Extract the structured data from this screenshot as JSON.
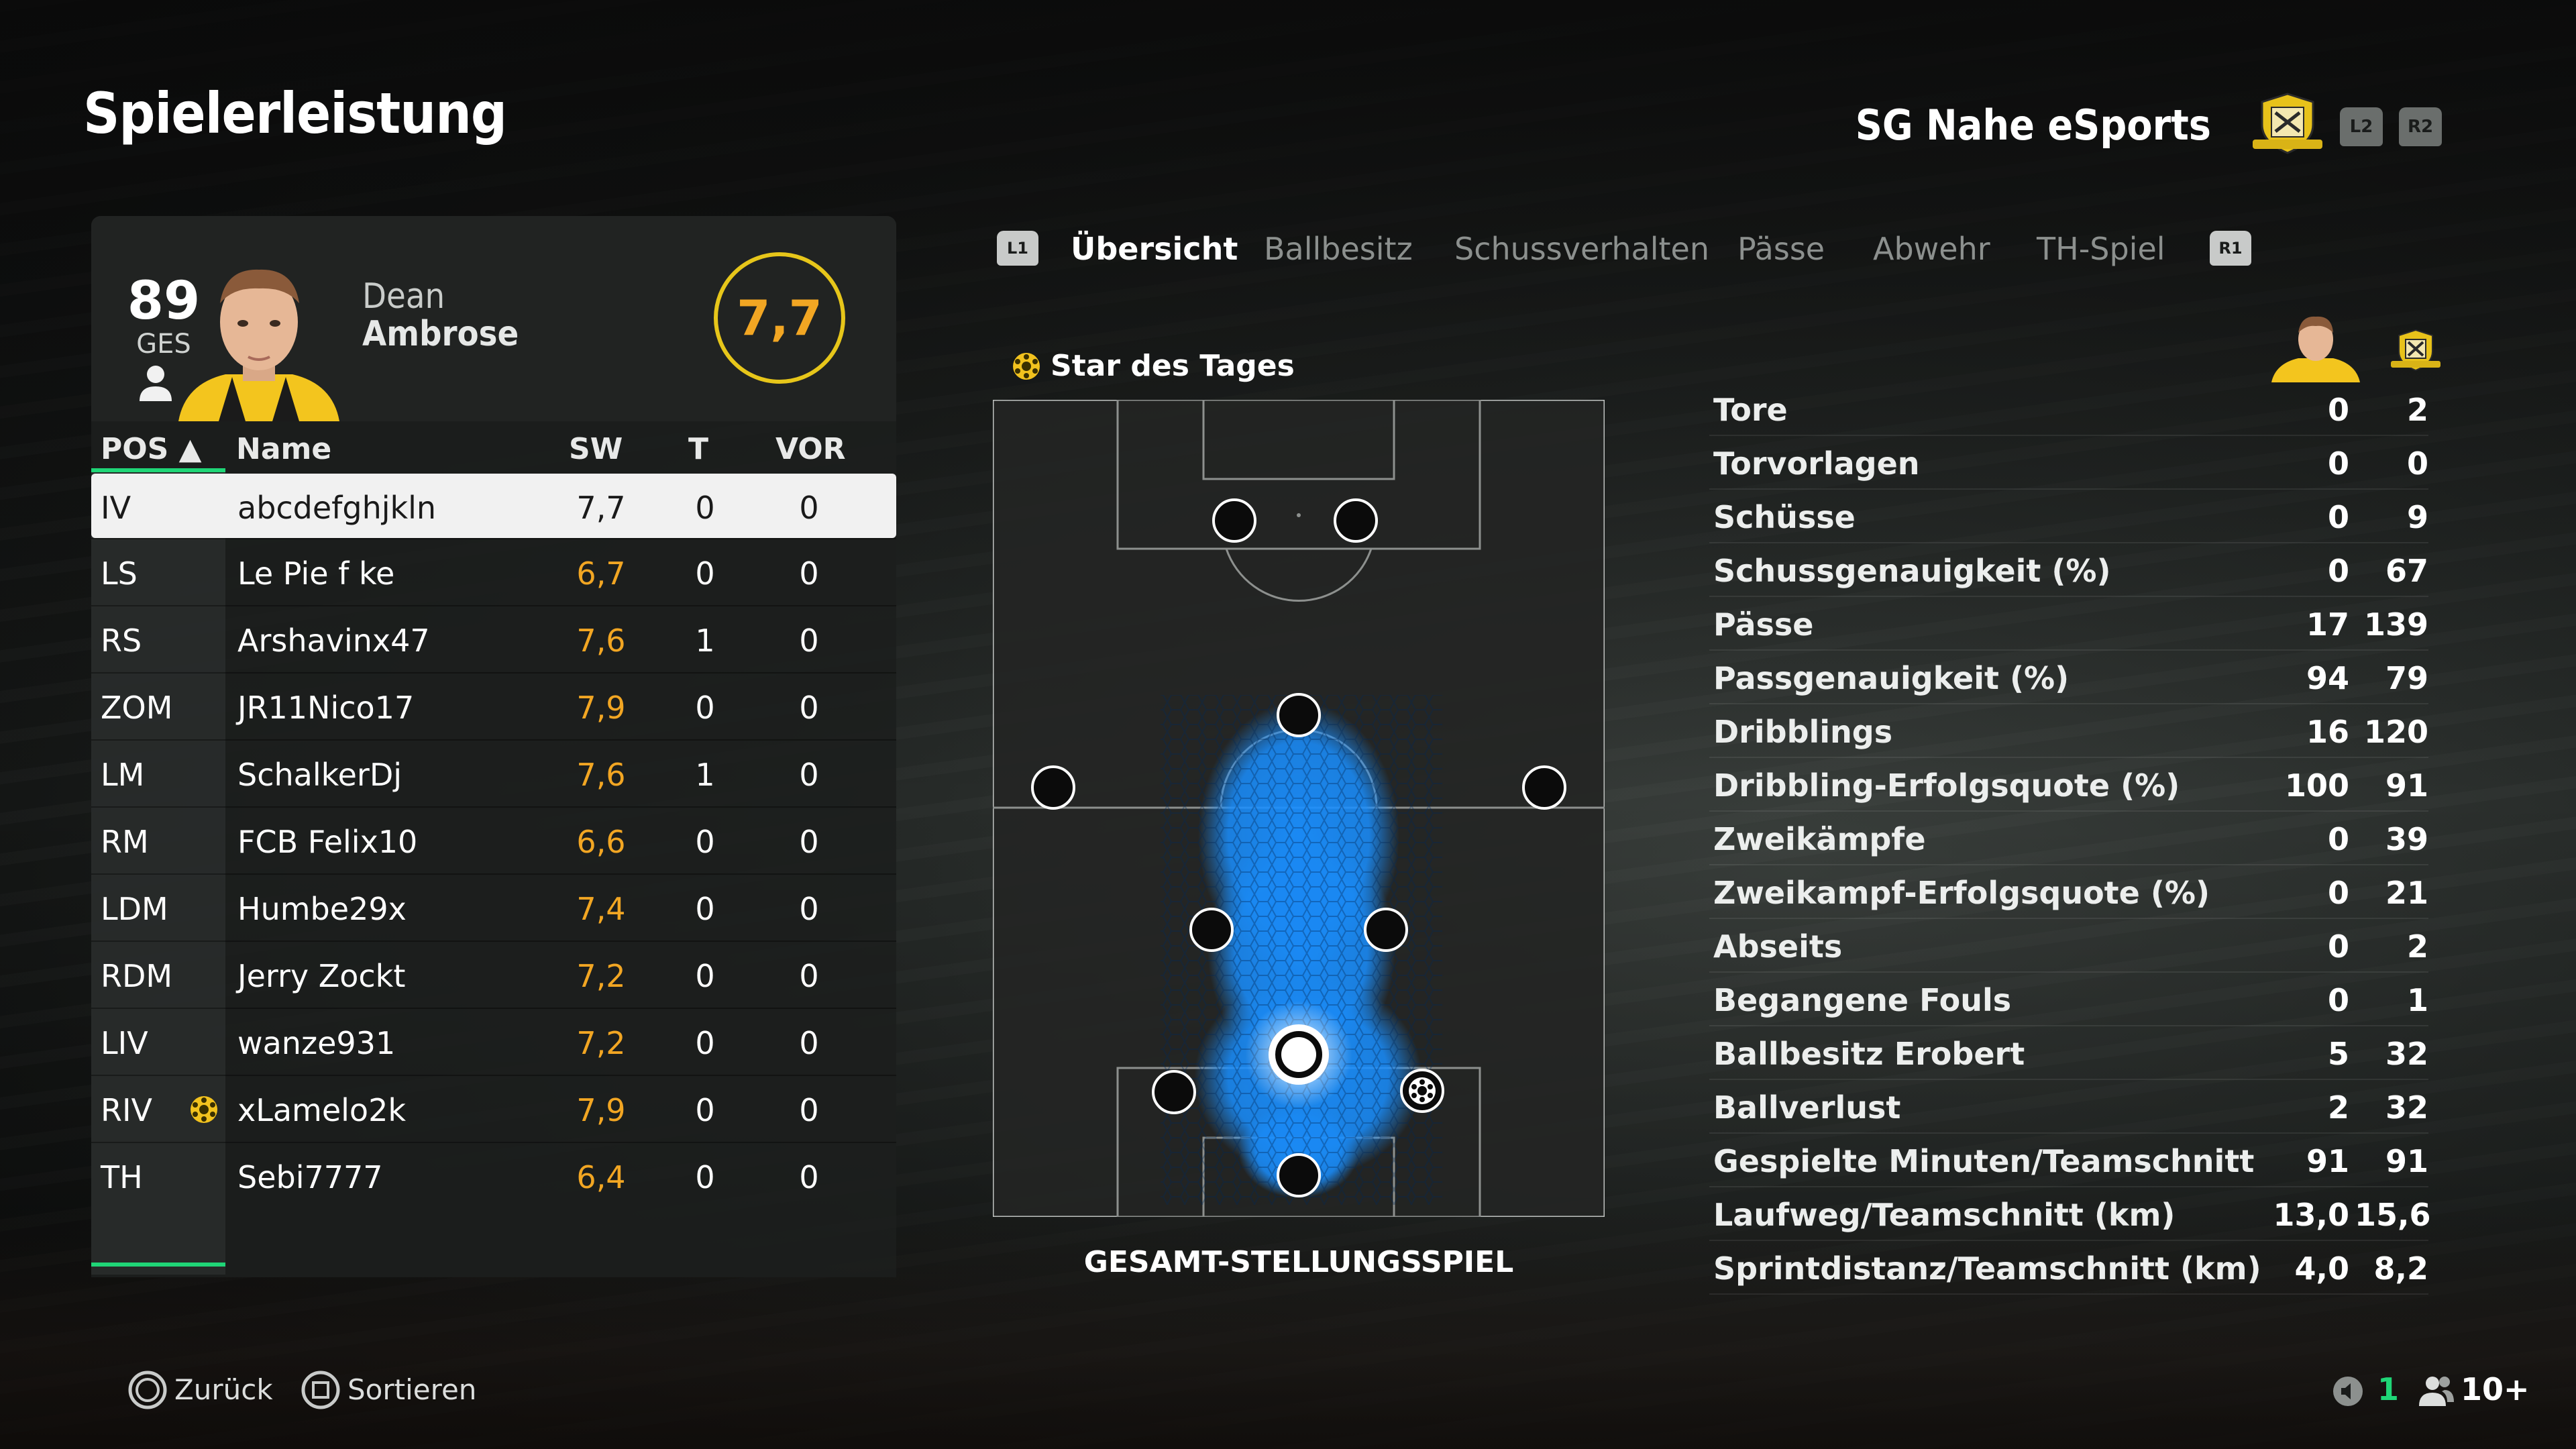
{
  "screen_title": "Spielerleistung",
  "club": {
    "name": "SG Nahe eSports",
    "btn_left": "L2",
    "btn_right": "R2"
  },
  "player": {
    "overall": "89",
    "overall_label": "GES",
    "first_name": "Dean",
    "last_name": "Ambrose",
    "rating": "7,7"
  },
  "table": {
    "headers": {
      "pos": "POS ▲",
      "name": "Name",
      "sw": "SW",
      "t": "T",
      "vor": "VOR"
    },
    "rows": [
      {
        "pos": "IV",
        "name": "abcdefghjkln",
        "sw": "7,7",
        "t": "0",
        "vor": "0",
        "selected": true
      },
      {
        "pos": "LS",
        "name": "Le Pie f ke",
        "sw": "6,7",
        "t": "0",
        "vor": "0"
      },
      {
        "pos": "RS",
        "name": "Arshavinx47",
        "sw": "7,6",
        "t": "1",
        "vor": "0"
      },
      {
        "pos": "ZOM",
        "name": "JR11Nico17",
        "sw": "7,9",
        "t": "0",
        "vor": "0"
      },
      {
        "pos": "LM",
        "name": "SchalkerDj",
        "sw": "7,6",
        "t": "1",
        "vor": "0"
      },
      {
        "pos": "RM",
        "name": "FCB Felix10",
        "sw": "6,6",
        "t": "0",
        "vor": "0"
      },
      {
        "pos": "LDM",
        "name": "Humbe29x",
        "sw": "7,4",
        "t": "0",
        "vor": "0"
      },
      {
        "pos": "RDM",
        "name": "Jerry Zockt",
        "sw": "7,2",
        "t": "0",
        "vor": "0"
      },
      {
        "pos": "LIV",
        "name": "wanze931",
        "sw": "7,2",
        "t": "0",
        "vor": "0"
      },
      {
        "pos": "RIV",
        "name": "xLamelo2k",
        "sw": "7,9",
        "t": "0",
        "vor": "0",
        "star": true
      },
      {
        "pos": "TH",
        "name": "Sebi7777",
        "sw": "6,4",
        "t": "0",
        "vor": "0"
      }
    ]
  },
  "tabs": {
    "btn_left": "L1",
    "btn_right": "R1",
    "items": [
      "Übersicht",
      "Ballbesitz",
      "Schussverhalten",
      "Pässe",
      "Abwehr",
      "TH-Spiel"
    ],
    "active": 0
  },
  "star_of_day": "Star des Tages",
  "pitch_label": "GESAMT-STELLUNGSSPIEL",
  "stats": [
    {
      "label": "Tore",
      "player": "0",
      "team": "2"
    },
    {
      "label": "Torvorlagen",
      "player": "0",
      "team": "0"
    },
    {
      "label": "Schüsse",
      "player": "0",
      "team": "9"
    },
    {
      "label": "Schussgenauigkeit (%)",
      "player": "0",
      "team": "67"
    },
    {
      "label": "Pässe",
      "player": "17",
      "team": "139"
    },
    {
      "label": "Passgenauigkeit (%)",
      "player": "94",
      "team": "79"
    },
    {
      "label": "Dribblings",
      "player": "16",
      "team": "120"
    },
    {
      "label": "Dribbling-Erfolgsquote (%)",
      "player": "100",
      "team": "91"
    },
    {
      "label": "Zweikämpfe",
      "player": "0",
      "team": "39"
    },
    {
      "label": "Zweikampf-Erfolgsquote (%)",
      "player": "0",
      "team": "21"
    },
    {
      "label": "Abseits",
      "player": "0",
      "team": "2"
    },
    {
      "label": "Begangene Fouls",
      "player": "0",
      "team": "1"
    },
    {
      "label": "Ballbesitz Erobert",
      "player": "5",
      "team": "32"
    },
    {
      "label": "Ballverlust",
      "player": "2",
      "team": "32"
    },
    {
      "label": "Gespielte Minuten/Teamschnitt",
      "player": "91",
      "team": "91"
    },
    {
      "label": "Laufweg/Teamschnitt (km)",
      "player": "13,0",
      "team": "15,6"
    },
    {
      "label": "Sprintdistanz/Teamschnitt (km)",
      "player": "4,0",
      "team": "8,2"
    }
  ],
  "footer": {
    "back": "Zurück",
    "sort": "Sortieren",
    "count_green": "1",
    "players": "10+"
  },
  "colors": {
    "accent_green": "#1fd677",
    "rating_orange": "#f2a623",
    "ring_yellow": "#e7c61a",
    "heat_blue": "#1a8fff"
  }
}
